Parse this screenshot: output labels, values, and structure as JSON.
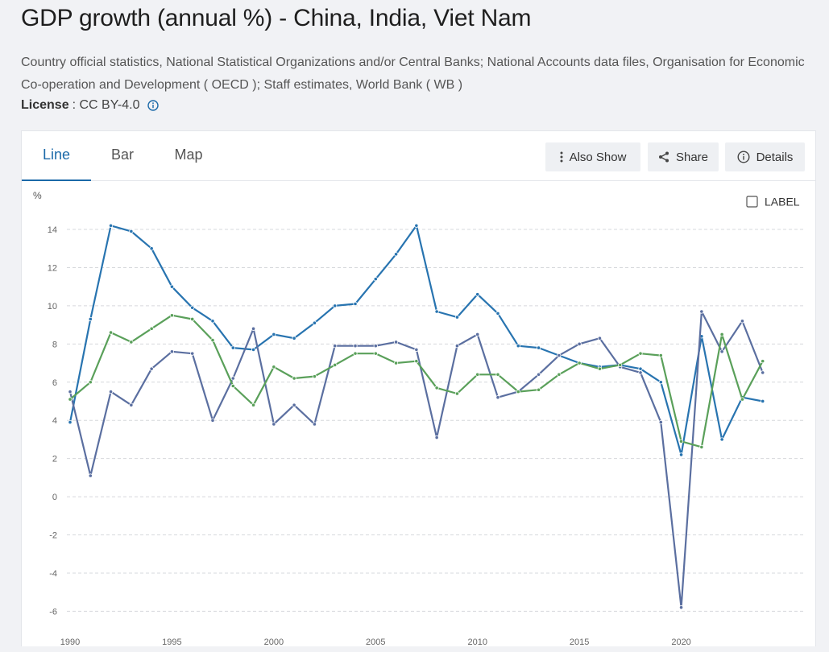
{
  "header": {
    "title": "GDP growth (annual %) - China, India, Viet Nam",
    "sources": "Country official statistics, National Statistical Organizations and/or Central Banks; National Accounts data files, Organisation for Economic Co-operation and Development ( OECD ); Staff estimates, World Bank ( WB )",
    "license_label": "License",
    "license_value": ": CC BY-4.0"
  },
  "tabs": [
    "Line",
    "Bar",
    "Map"
  ],
  "toolbar": {
    "also_show": "Also Show",
    "share": "Share",
    "details": "Details"
  },
  "label_toggle": "LABEL",
  "colors": {
    "china": "#2874b0",
    "india": "#5b6fa0",
    "vietnam": "#5aa05a",
    "active_tab": "#1b69a8"
  },
  "chart_data": {
    "type": "line",
    "ylabel": "%",
    "ylim": [
      -6,
      15
    ],
    "yticks": [
      14,
      12,
      10,
      8,
      6,
      4,
      2,
      0,
      -2,
      -4,
      -6
    ],
    "xlim": [
      1990,
      2025
    ],
    "xticks": [
      1990,
      1995,
      2000,
      2005,
      2010,
      2015,
      2020
    ],
    "grid": "horizontal dashed",
    "x": [
      1990,
      1991,
      1992,
      1993,
      1994,
      1995,
      1996,
      1997,
      1998,
      1999,
      2000,
      2001,
      2002,
      2003,
      2004,
      2005,
      2006,
      2007,
      2008,
      2009,
      2010,
      2011,
      2012,
      2013,
      2014,
      2015,
      2016,
      2017,
      2018,
      2019,
      2020,
      2021,
      2022,
      2023,
      2024
    ],
    "series": [
      {
        "key": "china",
        "values": [
          3.9,
          9.3,
          14.2,
          13.9,
          13.0,
          11.0,
          9.9,
          9.2,
          7.8,
          7.7,
          8.5,
          8.3,
          9.1,
          10.0,
          10.1,
          11.4,
          12.7,
          14.2,
          9.7,
          9.4,
          10.6,
          9.6,
          7.9,
          7.8,
          7.4,
          7.0,
          6.8,
          6.9,
          6.7,
          6.0,
          2.2,
          8.4,
          3.0,
          5.2,
          5.0
        ]
      },
      {
        "key": "india",
        "values": [
          5.5,
          1.1,
          5.5,
          4.8,
          6.7,
          7.6,
          7.5,
          4.0,
          6.2,
          8.8,
          3.8,
          4.8,
          3.8,
          7.9,
          7.9,
          7.9,
          8.1,
          7.7,
          3.1,
          7.9,
          8.5,
          5.2,
          5.5,
          6.4,
          7.4,
          8.0,
          8.3,
          6.8,
          6.5,
          3.9,
          -5.8,
          9.7,
          7.6,
          9.2,
          6.5
        ]
      },
      {
        "key": "vietnam",
        "values": [
          5.1,
          6.0,
          8.6,
          8.1,
          8.8,
          9.5,
          9.3,
          8.2,
          5.8,
          4.8,
          6.8,
          6.2,
          6.3,
          6.9,
          7.5,
          7.5,
          7.0,
          7.1,
          5.7,
          5.4,
          6.4,
          6.4,
          5.5,
          5.6,
          6.4,
          7.0,
          6.7,
          6.9,
          7.5,
          7.4,
          2.9,
          2.6,
          8.5,
          5.1,
          7.1
        ]
      }
    ]
  }
}
